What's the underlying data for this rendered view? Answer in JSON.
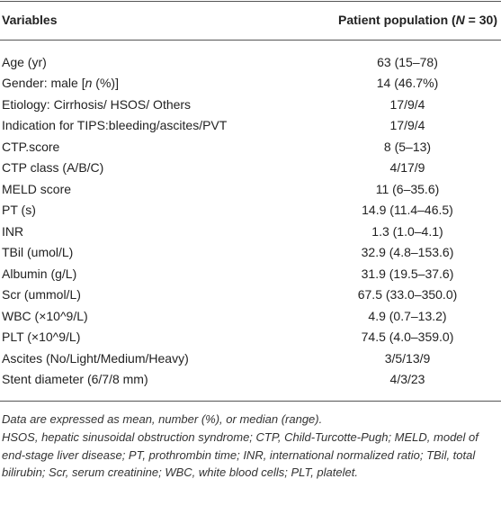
{
  "header": {
    "variables": "Variables",
    "population": [
      "Patient population (",
      "N",
      " = 30)"
    ]
  },
  "table": {
    "rows": [
      [
        "Age (yr)",
        "63 (15–78)"
      ],
      [
        [
          "Gender: male [",
          "n",
          " (%)]"
        ],
        "14 (46.7%)"
      ],
      [
        "Etiology: Cirrhosis/ HSOS/ Others",
        "17/9/4"
      ],
      [
        "Indication for TIPS:bleeding/ascites/PVT",
        "17/9/4"
      ],
      [
        "CTP.score",
        "8 (5–13)"
      ],
      [
        "CTP class (A/B/C)",
        "4/17/9"
      ],
      [
        "MELD score",
        "11 (6–35.6)"
      ],
      [
        "PT (s)",
        "14.9 (11.4–46.5)"
      ],
      [
        "INR",
        "1.3 (1.0–4.1)"
      ],
      [
        "TBil (umol/L)",
        "32.9 (4.8–153.6)"
      ],
      [
        "Albumin (g/L)",
        "31.9 (19.5–37.6)"
      ],
      [
        "Scr (ummol/L)",
        "67.5 (33.0–350.0)"
      ],
      [
        "WBC (×10^9/L)",
        "4.9 (0.7–13.2)"
      ],
      [
        "PLT (×10^9/L)",
        "74.5 (4.0–359.0)"
      ],
      [
        "Ascites (No/Light/Medium/Heavy)",
        "3/5/13/9"
      ],
      [
        "Stent diameter (6/7/8 mm)",
        "4/3/23"
      ]
    ]
  },
  "footnotes": [
    "Data are expressed as mean, number (%), or median (range).",
    "HSOS, hepatic sinusoidal obstruction syndrome; CTP, Child-Turcotte-Pugh; MELD, model of end-stage liver disease; PT, prothrombin time; INR, international normalized ratio; TBil, total bilirubin; Scr, serum creatinine; WBC, white blood cells; PLT, platelet."
  ]
}
